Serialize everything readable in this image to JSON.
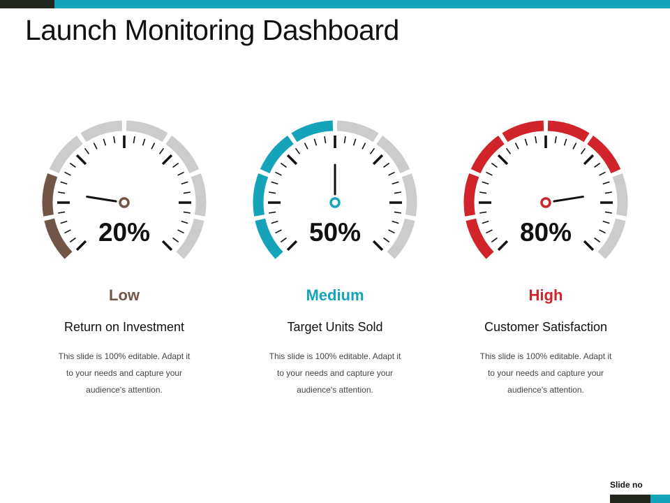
{
  "title": "Launch Monitoring Dashboard",
  "footer": {
    "slide_no": "Slide no"
  },
  "colors": {
    "top_bar_dark": "#23261f",
    "top_bar_accent": "#14a3b8",
    "inactive_segment": "#cccccc",
    "tick": "#111111"
  },
  "gauges": [
    {
      "value": "20%",
      "fraction": 0.2,
      "level": "Low",
      "label": "Return on Investment",
      "description": "This slide is 100% editable. Adapt it to your needs and capture your audience's attention.",
      "color": "#735548"
    },
    {
      "value": "50%",
      "fraction": 0.5,
      "level": "Medium",
      "label": "Target Units Sold",
      "description": "This slide is 100% editable. Adapt it to your needs and capture your audience's attention.",
      "color": "#14a3b8"
    },
    {
      "value": "80%",
      "fraction": 0.8,
      "level": "High",
      "label": "Customer Satisfaction",
      "description": "This slide is 100% editable. Adapt it to your needs and capture your audience's attention.",
      "color": "#d0232a"
    }
  ]
}
